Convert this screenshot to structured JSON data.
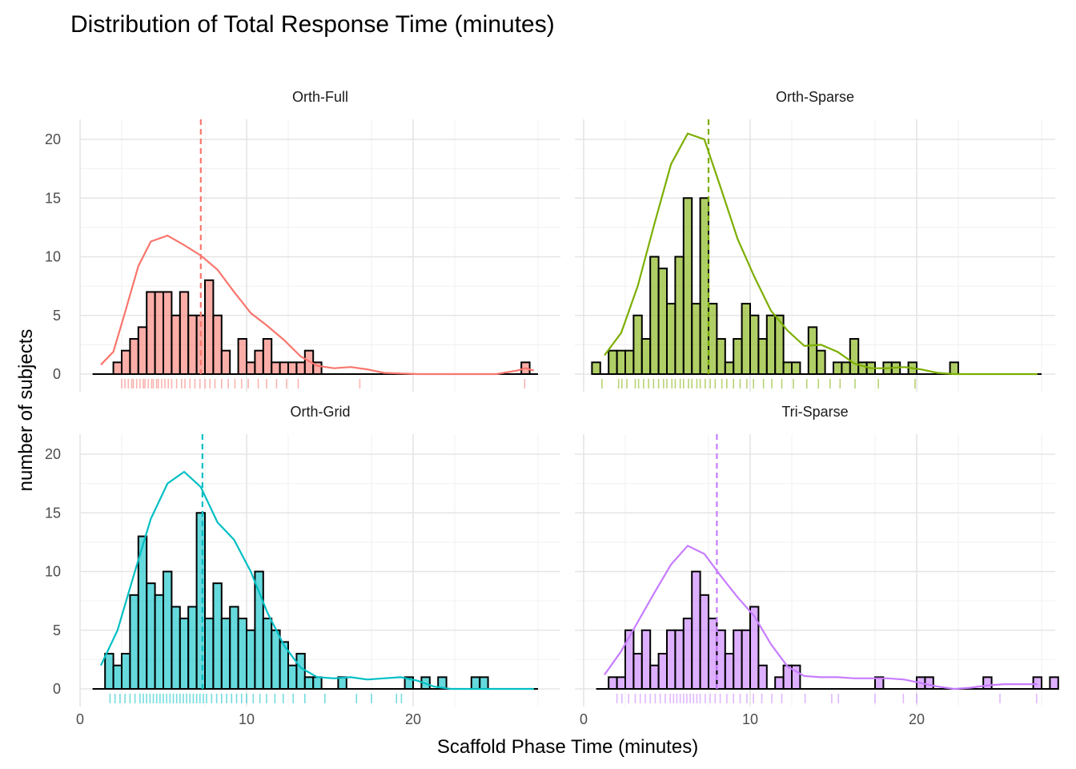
{
  "chart_data": {
    "type": "histogram",
    "title": "Distribution of Total Response Time (minutes)",
    "xlabel": "Scaffold Phase Time (minutes)",
    "ylabel": "number of subjects",
    "xlim": [
      0,
      27.5
    ],
    "ylim": [
      0,
      21
    ],
    "x_ticks": [
      0,
      10,
      20
    ],
    "y_ticks": [
      0,
      5,
      10,
      15,
      20
    ],
    "bin_width": 0.5,
    "facet_layout": "2x2",
    "grid": true,
    "legend": "none",
    "panels": [
      {
        "name": "Orth-Full",
        "color": "#F8766D",
        "mean": 7.25,
        "bins_start": 2.25,
        "counts": [
          1,
          2,
          3,
          4,
          7,
          7,
          7,
          5,
          7,
          5,
          5,
          8,
          5,
          2,
          0,
          3,
          1,
          2,
          3,
          1,
          1,
          1,
          1,
          2,
          1,
          0,
          0,
          0,
          0,
          0,
          0,
          0,
          0,
          0,
          0,
          0,
          0,
          0,
          0,
          0,
          0,
          0,
          0,
          0,
          0,
          0,
          0,
          0,
          0,
          1
        ],
        "extra_bins": [
          {
            "x": 16.75,
            "count": 1
          },
          {
            "x": 26.75,
            "count": 1
          }
        ],
        "density": [
          [
            1.25,
            0.8
          ],
          [
            2,
            1.9
          ],
          [
            2.75,
            5.5
          ],
          [
            3.5,
            9.2
          ],
          [
            4.25,
            11.3
          ],
          [
            5.25,
            11.8
          ],
          [
            6.25,
            11.0
          ],
          [
            7.25,
            10.1
          ],
          [
            8.25,
            8.9
          ],
          [
            9.25,
            7.0
          ],
          [
            10.25,
            5.2
          ],
          [
            11.25,
            4.1
          ],
          [
            12.25,
            2.9
          ],
          [
            13.25,
            1.5
          ],
          [
            14.25,
            0.7
          ],
          [
            15.25,
            0.5
          ],
          [
            16.25,
            0.6
          ],
          [
            17.25,
            0.4
          ],
          [
            18.25,
            0.1
          ],
          [
            20.25,
            0.0
          ],
          [
            23,
            0.0
          ],
          [
            25,
            0.0
          ],
          [
            26.25,
            0.3
          ],
          [
            26.75,
            0.5
          ],
          [
            27.25,
            0.3
          ]
        ],
        "rug": [
          2.5,
          2.7,
          2.9,
          3.1,
          3.2,
          3.4,
          3.6,
          3.8,
          3.9,
          4.1,
          4.3,
          4.4,
          4.6,
          4.7,
          4.9,
          5.1,
          5.3,
          5.5,
          5.8,
          6.1,
          6.3,
          6.6,
          6.9,
          7.2,
          7.5,
          7.8,
          8.1,
          8.5,
          8.9,
          9.3,
          9.7,
          10.1,
          10.7,
          11.2,
          11.8,
          12.4,
          13.1,
          16.8,
          26.7
        ]
      },
      {
        "name": "Orth-Sparse",
        "color": "#7CAE00",
        "mean": 7.5,
        "bins_start": 0.75,
        "counts": [
          1,
          0,
          2,
          2,
          2,
          5,
          3,
          10,
          9,
          6,
          10,
          15,
          6,
          15,
          6,
          3,
          1,
          3,
          6,
          5,
          3,
          5,
          5,
          1,
          1,
          0,
          4,
          2,
          0,
          1,
          1,
          3,
          1,
          1,
          0,
          1,
          1,
          0,
          1,
          0,
          0,
          0,
          0,
          1
        ],
        "extra_bins": [],
        "density": [
          [
            1.25,
            1.6
          ],
          [
            2.25,
            3.5
          ],
          [
            3.25,
            7.5
          ],
          [
            4.25,
            12.8
          ],
          [
            5.25,
            17.9
          ],
          [
            6.25,
            20.5
          ],
          [
            7.25,
            20.0
          ],
          [
            8.25,
            15.8
          ],
          [
            9.25,
            11.5
          ],
          [
            10.25,
            8.3
          ],
          [
            11.25,
            5.4
          ],
          [
            12.25,
            3.7
          ],
          [
            13.25,
            2.4
          ],
          [
            14.25,
            2.5
          ],
          [
            15.25,
            1.9
          ],
          [
            16.25,
            0.9
          ],
          [
            17.25,
            0.5
          ],
          [
            18.25,
            0.5
          ],
          [
            19.25,
            0.6
          ],
          [
            20.25,
            0.4
          ],
          [
            21.25,
            0.1
          ],
          [
            22.25,
            0.0
          ],
          [
            24.25,
            0.0
          ],
          [
            27.25,
            0.0
          ]
        ],
        "rug": [
          1.1,
          2.1,
          2.3,
          2.6,
          3.1,
          3.3,
          3.6,
          3.9,
          4.2,
          4.5,
          4.8,
          5.0,
          5.3,
          5.5,
          5.8,
          6.0,
          6.3,
          6.5,
          6.8,
          7.0,
          7.3,
          7.6,
          7.9,
          8.3,
          8.6,
          9.0,
          9.4,
          9.8,
          10.2,
          10.8,
          11.3,
          11.9,
          12.6,
          13.4,
          14.1,
          14.8,
          15.4,
          16.3,
          17.7,
          19.9
        ]
      },
      {
        "name": "Orth-Grid",
        "color": "#00BFC4",
        "mean": 7.35,
        "bins_start": 1.75,
        "counts": [
          3,
          2,
          3,
          8,
          13,
          9,
          8,
          10,
          7,
          6,
          7,
          15,
          6,
          9,
          6,
          7,
          6,
          5,
          10,
          6,
          5,
          4,
          2,
          3,
          1,
          1,
          0,
          0,
          1,
          0,
          0,
          0,
          0,
          0,
          0,
          0,
          1,
          0,
          1,
          0,
          1,
          0,
          0,
          0,
          1,
          1
        ],
        "extra_bins": [],
        "density": [
          [
            1.25,
            2.0
          ],
          [
            2.25,
            5.0
          ],
          [
            3.25,
            9.8
          ],
          [
            4.25,
            14.5
          ],
          [
            5.25,
            17.5
          ],
          [
            6.25,
            18.5
          ],
          [
            7.25,
            17.2
          ],
          [
            8.25,
            14.2
          ],
          [
            9.25,
            12.7
          ],
          [
            10.25,
            10.0
          ],
          [
            11.25,
            6.5
          ],
          [
            12.25,
            3.7
          ],
          [
            13.25,
            1.8
          ],
          [
            14.25,
            1.0
          ],
          [
            15.25,
            0.9
          ],
          [
            16.25,
            1.0
          ],
          [
            17.25,
            0.8
          ],
          [
            18.25,
            0.9
          ],
          [
            19.25,
            1.0
          ],
          [
            20.25,
            0.7
          ],
          [
            21.25,
            0.2
          ],
          [
            22.25,
            0.0
          ],
          [
            27.25,
            0.0
          ]
        ],
        "rug": [
          1.8,
          2.1,
          2.4,
          2.7,
          3.0,
          3.3,
          3.6,
          3.8,
          4.0,
          4.2,
          4.4,
          4.6,
          4.8,
          5.0,
          5.2,
          5.4,
          5.6,
          5.8,
          6.0,
          6.2,
          6.4,
          6.6,
          6.8,
          7.0,
          7.2,
          7.4,
          7.6,
          7.9,
          8.2,
          8.5,
          8.8,
          9.1,
          9.4,
          9.7,
          10.0,
          10.4,
          10.8,
          11.2,
          11.7,
          12.2,
          12.8,
          13.5,
          14.7,
          16.6,
          17.5,
          19.0,
          19.3
        ]
      },
      {
        "name": "Tri-Sparse",
        "color": "#C77CFF",
        "mean": 8.0,
        "bins_start": 1.75,
        "counts": [
          1,
          1,
          5,
          3,
          5,
          2,
          3,
          5,
          5,
          6,
          10,
          8,
          6,
          5,
          3,
          5,
          5,
          7,
          2,
          0,
          1,
          2,
          2,
          0,
          0,
          0,
          0,
          0,
          0,
          0,
          0,
          0,
          1,
          0,
          0,
          0,
          0,
          1,
          1,
          0,
          0,
          0,
          0,
          0,
          0,
          1,
          0,
          0,
          0,
          0,
          0,
          1,
          0,
          1
        ],
        "extra_bins": [
          {
            "x": 24.75,
            "count": 1
          },
          {
            "x": 27.25,
            "count": 1
          }
        ],
        "density": [
          [
            1.25,
            1.2
          ],
          [
            2.25,
            3.2
          ],
          [
            3.25,
            5.7
          ],
          [
            4.25,
            8.2
          ],
          [
            5.25,
            10.6
          ],
          [
            6.25,
            12.2
          ],
          [
            7.25,
            11.5
          ],
          [
            8.25,
            9.6
          ],
          [
            9.25,
            7.8
          ],
          [
            10.25,
            6.2
          ],
          [
            11.25,
            3.8
          ],
          [
            12.25,
            1.9
          ],
          [
            13.25,
            1.1
          ],
          [
            14.25,
            1.0
          ],
          [
            15.25,
            1.0
          ],
          [
            16.25,
            0.9
          ],
          [
            17.25,
            0.9
          ],
          [
            18.25,
            0.9
          ],
          [
            19.25,
            0.8
          ],
          [
            20.25,
            0.5
          ],
          [
            21.25,
            0.2
          ],
          [
            22.25,
            0.0
          ],
          [
            23.25,
            0.1
          ],
          [
            24.25,
            0.3
          ],
          [
            25.25,
            0.4
          ],
          [
            26.25,
            0.4
          ],
          [
            27.25,
            0.4
          ]
        ],
        "rug": [
          2.0,
          2.3,
          2.7,
          3.1,
          3.4,
          3.7,
          4.0,
          4.3,
          4.6,
          4.9,
          5.2,
          5.4,
          5.6,
          5.8,
          6.0,
          6.2,
          6.4,
          6.6,
          6.8,
          7.0,
          7.3,
          7.6,
          7.9,
          8.2,
          8.6,
          9.0,
          9.4,
          9.8,
          10.2,
          10.7,
          11.3,
          11.9,
          13.3,
          14.9,
          15.3,
          17.5,
          19.2,
          20.0,
          25.0,
          27.2
        ]
      }
    ]
  }
}
